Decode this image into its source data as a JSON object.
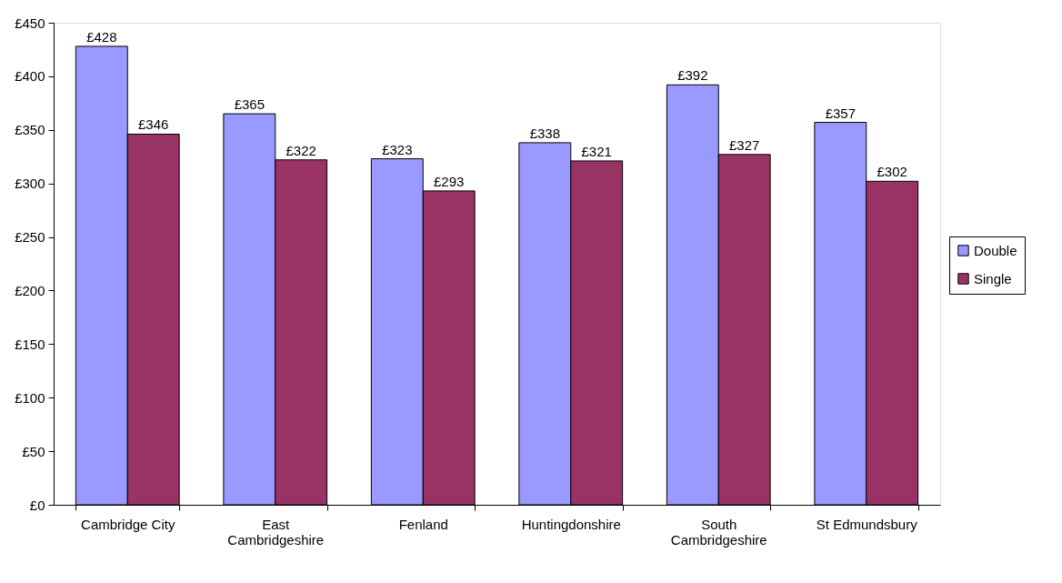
{
  "chart_data": {
    "type": "bar",
    "categories": [
      "Cambridge City",
      "East Cambridgeshire",
      "Fenland",
      "Huntingdonshire",
      "South Cambridgeshire",
      "St Edmundsbury"
    ],
    "series": [
      {
        "name": "Double",
        "color": "#9999ff",
        "values": [
          428,
          365,
          323,
          338,
          392,
          357
        ],
        "value_labels": [
          "£428",
          "£365",
          "£323",
          "£338",
          "£392",
          "£357"
        ]
      },
      {
        "name": "Single",
        "color": "#993366",
        "values": [
          346,
          322,
          293,
          321,
          327,
          302
        ],
        "value_labels": [
          "£346",
          "£322",
          "£293",
          "£321",
          "£327",
          "£302"
        ]
      }
    ],
    "ylim": [
      0,
      450
    ],
    "yticks": [
      {
        "value": 0,
        "label": "£0"
      },
      {
        "value": 50,
        "label": "£50"
      },
      {
        "value": 100,
        "label": "£100"
      },
      {
        "value": 150,
        "label": "£150"
      },
      {
        "value": 200,
        "label": "£200"
      },
      {
        "value": 250,
        "label": "£250"
      },
      {
        "value": 300,
        "label": "£300"
      },
      {
        "value": 350,
        "label": "£350"
      },
      {
        "value": 400,
        "label": "£400"
      },
      {
        "value": 450,
        "label": "£450"
      }
    ],
    "grid": false,
    "legend": "right"
  }
}
